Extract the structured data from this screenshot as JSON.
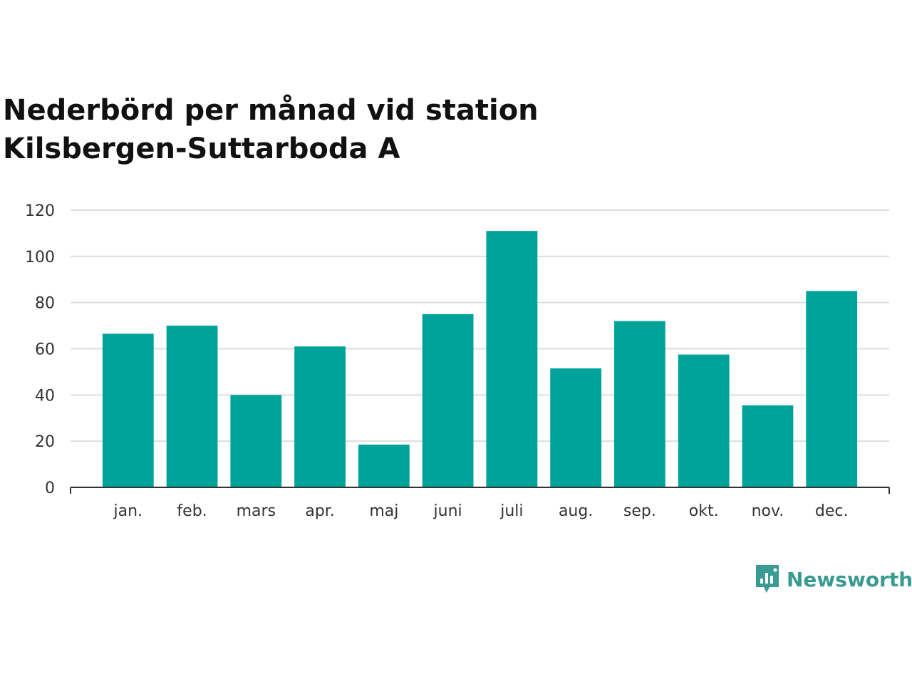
{
  "chart_data": {
    "type": "bar",
    "title_lines": [
      "Nederbörd per månad vid station",
      "Kilsbergen-Suttarboda A"
    ],
    "categories": [
      "jan.",
      "feb.",
      "mars",
      "apr.",
      "maj",
      "juni",
      "juli",
      "aug.",
      "sep.",
      "okt.",
      "nov.",
      "dec."
    ],
    "values": [
      66.5,
      70,
      40,
      61,
      18.5,
      75,
      111,
      51.5,
      72,
      57.5,
      35.5,
      85
    ],
    "y_ticks": [
      0,
      20,
      40,
      60,
      80,
      100,
      120
    ],
    "ylim": [
      0,
      120
    ],
    "grid": true,
    "bar_color": "#00a39a"
  },
  "brand": {
    "name": "Newsworthy",
    "color": "#3a9b93",
    "icon": "newsworthy-logo-icon"
  }
}
